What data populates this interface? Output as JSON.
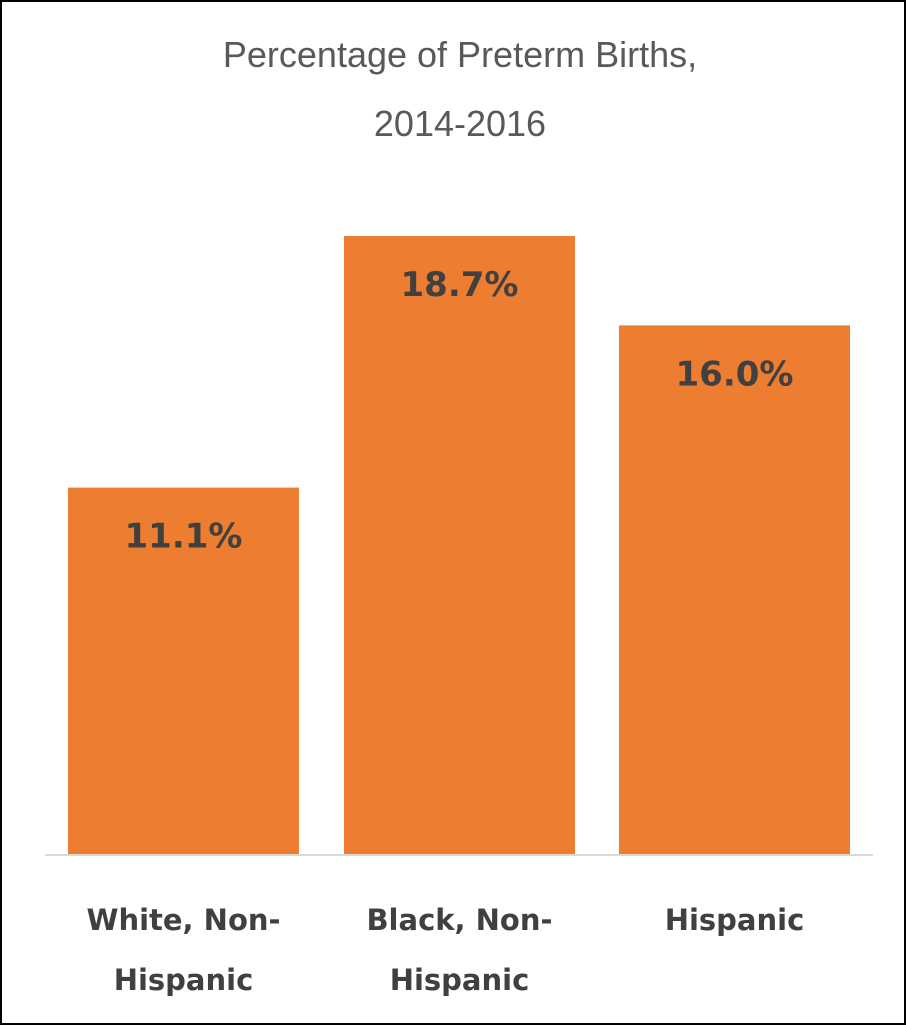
{
  "chart_data": {
    "type": "bar",
    "title_lines": [
      "Percentage of Preterm Births,",
      "2014-2016"
    ],
    "categories": [
      [
        "White, Non-",
        "Hispanic"
      ],
      [
        "Black, Non-",
        "Hispanic"
      ],
      [
        "Hispanic"
      ]
    ],
    "values": [
      11.1,
      18.7,
      16.0
    ],
    "value_labels": [
      "11.1%",
      "18.7%",
      "16.0%"
    ],
    "ylim": [
      0,
      20
    ],
    "grid": false,
    "legend": "none",
    "colors": {
      "bar": "#ED7D31",
      "axis": "#D9D9D9",
      "frame": "#000000",
      "text": "#404040",
      "title": "#595959"
    }
  }
}
